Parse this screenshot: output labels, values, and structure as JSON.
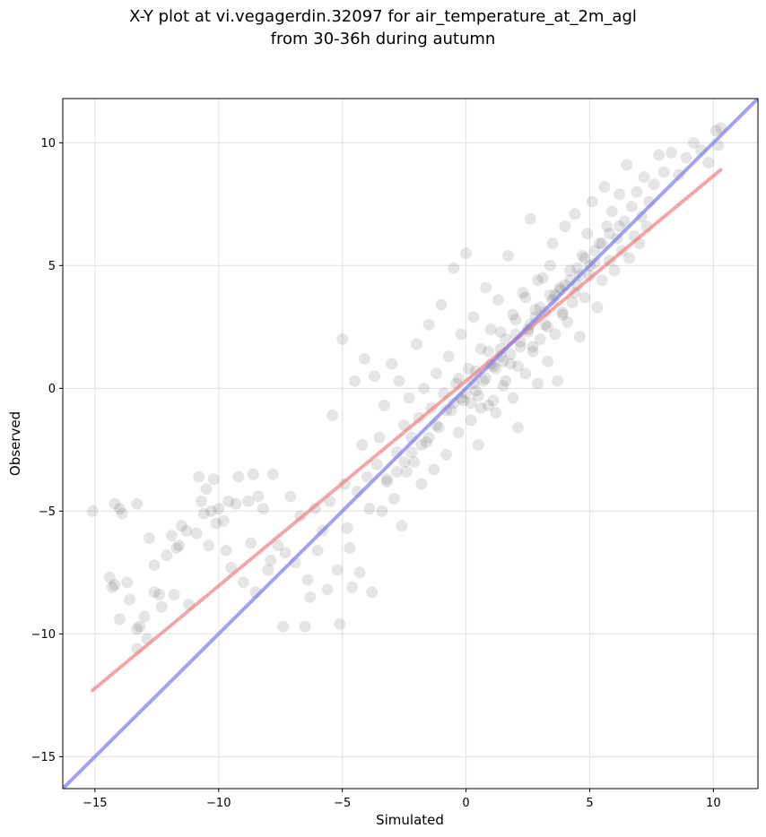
{
  "figure": {
    "title_line1": "X-Y plot at vi.vegagerdin.32097 for air_temperature_at_2m_agl",
    "title_line2": "from 30-36h during autumn"
  },
  "colors": {
    "points": "#000000",
    "regression_line": "#f08080",
    "identity_line": "#7b7bf0",
    "grid": "#e6e6e6"
  },
  "chart_data": {
    "type": "scatter",
    "title": "X-Y plot at vi.vegagerdin.32097 for air_temperature_at_2m_agl from 30-36h during autumn",
    "xlabel": "Simulated",
    "ylabel": "Observed",
    "xlim": [
      -16.3,
      11.8
    ],
    "ylim": [
      -16.3,
      11.8
    ],
    "xticks": [
      -15,
      -10,
      -5,
      0,
      5,
      10
    ],
    "yticks": [
      -15,
      -10,
      -5,
      0,
      5,
      10
    ],
    "xtick_labels": [
      "−15",
      "−10",
      "−5",
      "0",
      "5",
      "10"
    ],
    "ytick_labels": [
      "−15",
      "−10",
      "−5",
      "0",
      "5",
      "10"
    ],
    "grid": true,
    "series": [
      {
        "type": "scatter",
        "points": [
          [
            -15.1,
            -5.0
          ],
          [
            -14.4,
            -7.7
          ],
          [
            -14.3,
            -8.1
          ],
          [
            -14.2,
            -8.0
          ],
          [
            -14.0,
            -9.4
          ],
          [
            -14.2,
            -4.7
          ],
          [
            -13.9,
            -5.1
          ],
          [
            -14.0,
            -4.9
          ],
          [
            -13.7,
            -7.9
          ],
          [
            -13.6,
            -8.6
          ],
          [
            -13.3,
            -9.8
          ],
          [
            -13.2,
            -9.7
          ],
          [
            -13.3,
            -10.6
          ],
          [
            -13.3,
            -4.7
          ],
          [
            -13.0,
            -9.3
          ],
          [
            -12.9,
            -10.2
          ],
          [
            -12.8,
            -6.1
          ],
          [
            -12.6,
            -8.3
          ],
          [
            -12.6,
            -7.2
          ],
          [
            -12.4,
            -8.4
          ],
          [
            -12.3,
            -8.9
          ],
          [
            -12.1,
            -6.8
          ],
          [
            -11.9,
            -6.0
          ],
          [
            -11.8,
            -8.4
          ],
          [
            -11.7,
            -6.5
          ],
          [
            -11.6,
            -6.4
          ],
          [
            -11.5,
            -5.6
          ],
          [
            -11.3,
            -5.8
          ],
          [
            -11.2,
            -8.8
          ],
          [
            -10.9,
            -5.9
          ],
          [
            -10.8,
            -3.6
          ],
          [
            -10.7,
            -4.6
          ],
          [
            -10.6,
            -5.1
          ],
          [
            -10.5,
            -4.1
          ],
          [
            -10.4,
            -6.4
          ],
          [
            -10.3,
            -5.0
          ],
          [
            -10.2,
            -3.7
          ],
          [
            -10.1,
            -5.5
          ],
          [
            -10.0,
            -4.9
          ],
          [
            -9.8,
            -5.4
          ],
          [
            -9.7,
            -6.6
          ],
          [
            -9.6,
            -4.6
          ],
          [
            -9.5,
            -7.3
          ],
          [
            -9.3,
            -4.7
          ],
          [
            -9.2,
            -3.6
          ],
          [
            -9.0,
            -7.9
          ],
          [
            -8.8,
            -4.6
          ],
          [
            -8.7,
            -6.3
          ],
          [
            -8.6,
            -3.5
          ],
          [
            -8.5,
            -8.3
          ],
          [
            -8.4,
            -4.4
          ],
          [
            -8.2,
            -4.9
          ],
          [
            -8.0,
            -7.4
          ],
          [
            -7.9,
            -7.0
          ],
          [
            -7.8,
            -3.5
          ],
          [
            -7.6,
            -6.4
          ],
          [
            -7.4,
            -9.7
          ],
          [
            -7.3,
            -6.7
          ],
          [
            -7.1,
            -4.4
          ],
          [
            -6.9,
            -7.1
          ],
          [
            -6.7,
            -5.2
          ],
          [
            -6.5,
            -9.7
          ],
          [
            -6.4,
            -7.8
          ],
          [
            -6.3,
            -8.5
          ],
          [
            -6.1,
            -4.9
          ],
          [
            -6.0,
            -6.6
          ],
          [
            -5.8,
            -5.8
          ],
          [
            -5.6,
            -8.2
          ],
          [
            -5.5,
            -4.6
          ],
          [
            -5.4,
            -1.1
          ],
          [
            -5.2,
            -7.4
          ],
          [
            -5.1,
            -9.6
          ],
          [
            -5.0,
            2.0
          ],
          [
            -4.9,
            -3.9
          ],
          [
            -4.8,
            -5.7
          ],
          [
            -4.7,
            -6.5
          ],
          [
            -4.6,
            -8.1
          ],
          [
            -4.5,
            0.3
          ],
          [
            -4.4,
            -4.2
          ],
          [
            -4.3,
            -7.5
          ],
          [
            -4.2,
            -2.3
          ],
          [
            -4.1,
            1.2
          ],
          [
            -4.0,
            -3.6
          ],
          [
            -3.9,
            -4.9
          ],
          [
            -3.8,
            -8.3
          ],
          [
            -3.7,
            0.5
          ],
          [
            -3.6,
            -3.1
          ],
          [
            -3.5,
            -2.0
          ],
          [
            -3.4,
            -5.0
          ],
          [
            -3.3,
            -0.7
          ],
          [
            -3.2,
            -3.8
          ],
          [
            -3.0,
            1.0
          ],
          [
            -2.9,
            -4.5
          ],
          [
            -2.8,
            -2.6
          ],
          [
            -2.7,
            0.3
          ],
          [
            -2.6,
            -5.6
          ],
          [
            -2.5,
            -1.5
          ],
          [
            -2.4,
            -3.4
          ],
          [
            -2.3,
            -0.4
          ],
          [
            -2.2,
            -2.0
          ],
          [
            -2.1,
            -3.0
          ],
          [
            -2.0,
            1.8
          ],
          [
            -1.9,
            -1.2
          ],
          [
            -1.8,
            -3.9
          ],
          [
            -1.7,
            0.0
          ],
          [
            -1.6,
            -2.2
          ],
          [
            -1.5,
            2.6
          ],
          [
            -1.4,
            -0.8
          ],
          [
            -1.3,
            -3.3
          ],
          [
            -1.2,
            0.6
          ],
          [
            -1.1,
            -1.6
          ],
          [
            -1.0,
            3.4
          ],
          [
            -0.9,
            -0.2
          ],
          [
            -0.8,
            -2.7
          ],
          [
            -0.7,
            1.3
          ],
          [
            -0.6,
            -0.9
          ],
          [
            -0.5,
            4.9
          ],
          [
            -0.4,
            0.2
          ],
          [
            -0.3,
            -1.8
          ],
          [
            -0.2,
            2.2
          ],
          [
            -0.1,
            -0.5
          ],
          [
            0.0,
            5.5
          ],
          [
            0.1,
            0.8
          ],
          [
            0.2,
            -1.3
          ],
          [
            0.3,
            2.9
          ],
          [
            0.4,
            -0.1
          ],
          [
            0.5,
            -2.3
          ],
          [
            0.6,
            1.6
          ],
          [
            0.7,
            0.3
          ],
          [
            0.8,
            4.1
          ],
          [
            0.9,
            -0.7
          ],
          [
            1.0,
            2.4
          ],
          [
            1.1,
            0.9
          ],
          [
            1.2,
            -1.0
          ],
          [
            1.3,
            3.6
          ],
          [
            1.4,
            1.3
          ],
          [
            1.5,
            0.1
          ],
          [
            1.6,
            2.0
          ],
          [
            1.7,
            5.4
          ],
          [
            1.8,
            1.0
          ],
          [
            1.9,
            -0.4
          ],
          [
            2.0,
            2.8
          ],
          [
            2.1,
            -1.6
          ],
          [
            2.2,
            1.7
          ],
          [
            2.3,
            3.9
          ],
          [
            2.4,
            0.6
          ],
          [
            2.5,
            2.3
          ],
          [
            2.6,
            6.9
          ],
          [
            2.7,
            1.5
          ],
          [
            2.8,
            3.2
          ],
          [
            2.9,
            0.2
          ],
          [
            3.0,
            2.0
          ],
          [
            3.1,
            4.5
          ],
          [
            3.2,
            2.6
          ],
          [
            3.3,
            1.1
          ],
          [
            3.4,
            3.8
          ],
          [
            3.5,
            5.9
          ],
          [
            3.6,
            2.2
          ],
          [
            3.7,
            0.3
          ],
          [
            3.8,
            4.1
          ],
          [
            3.9,
            3.0
          ],
          [
            4.0,
            6.6
          ],
          [
            4.1,
            2.7
          ],
          [
            4.2,
            4.8
          ],
          [
            4.3,
            3.5
          ],
          [
            4.4,
            7.1
          ],
          [
            4.5,
            4.2
          ],
          [
            4.6,
            2.1
          ],
          [
            4.7,
            5.4
          ],
          [
            4.8,
            3.7
          ],
          [
            4.9,
            6.3
          ],
          [
            5.0,
            4.6
          ],
          [
            5.1,
            7.6
          ],
          [
            5.2,
            5.1
          ],
          [
            5.3,
            3.3
          ],
          [
            5.4,
            5.9
          ],
          [
            5.5,
            4.4
          ],
          [
            5.6,
            8.2
          ],
          [
            5.7,
            6.6
          ],
          [
            5.8,
            5.2
          ],
          [
            5.9,
            7.2
          ],
          [
            6.0,
            4.8
          ],
          [
            6.1,
            6.1
          ],
          [
            6.2,
            7.9
          ],
          [
            6.3,
            5.6
          ],
          [
            6.4,
            6.8
          ],
          [
            6.5,
            9.1
          ],
          [
            6.6,
            5.3
          ],
          [
            6.7,
            7.4
          ],
          [
            6.8,
            6.2
          ],
          [
            6.9,
            8.0
          ],
          [
            7.0,
            5.9
          ],
          [
            7.1,
            7.0
          ],
          [
            7.2,
            8.6
          ],
          [
            7.3,
            6.6
          ],
          [
            7.4,
            7.6
          ],
          [
            7.6,
            8.3
          ],
          [
            7.8,
            9.5
          ],
          [
            8.0,
            8.8
          ],
          [
            8.3,
            9.6
          ],
          [
            8.6,
            8.7
          ],
          [
            8.9,
            9.4
          ],
          [
            9.2,
            10.0
          ],
          [
            9.5,
            9.7
          ],
          [
            9.8,
            9.2
          ],
          [
            10.1,
            10.5
          ],
          [
            10.3,
            10.6
          ],
          [
            10.2,
            9.9
          ],
          [
            -0.2,
            -0.4
          ],
          [
            0.2,
            -0.6
          ],
          [
            0.5,
            -0.3
          ],
          [
            0.8,
            0.4
          ],
          [
            1.2,
            0.8
          ],
          [
            1.5,
            1.1
          ],
          [
            1.8,
            1.4
          ],
          [
            2.2,
            1.9
          ],
          [
            2.5,
            2.4
          ],
          [
            2.8,
            2.9
          ],
          [
            3.2,
            3.1
          ],
          [
            3.5,
            3.6
          ],
          [
            3.8,
            4.0
          ],
          [
            4.2,
            4.4
          ],
          [
            4.5,
            4.9
          ],
          [
            4.8,
            5.3
          ],
          [
            5.2,
            5.6
          ],
          [
            5.5,
            5.9
          ],
          [
            5.8,
            6.3
          ],
          [
            6.2,
            6.6
          ],
          [
            -1.2,
            -1.5
          ],
          [
            -1.5,
            -2.0
          ],
          [
            -1.8,
            -2.3
          ],
          [
            -2.2,
            -2.6
          ],
          [
            -2.5,
            -3.0
          ],
          [
            -2.8,
            -3.4
          ],
          [
            -3.2,
            -3.7
          ],
          [
            -0.8,
            -0.9
          ],
          [
            -0.5,
            -0.6
          ],
          [
            0.0,
            -0.2
          ],
          [
            0.3,
            0.2
          ],
          [
            1.0,
            1.0
          ],
          [
            1.4,
            1.6
          ],
          [
            2.0,
            2.2
          ],
          [
            2.6,
            2.6
          ],
          [
            3.0,
            3.3
          ],
          [
            3.6,
            3.8
          ],
          [
            4.0,
            4.2
          ],
          [
            4.6,
            4.6
          ],
          [
            5.0,
            5.0
          ],
          [
            0.6,
            -0.8
          ],
          [
            1.1,
            -0.5
          ],
          [
            1.6,
            0.3
          ],
          [
            2.1,
            0.9
          ],
          [
            2.7,
            1.7
          ],
          [
            3.3,
            2.5
          ],
          [
            3.9,
            3.1
          ],
          [
            4.4,
            3.9
          ],
          [
            0.4,
            0.7
          ],
          [
            0.9,
            1.5
          ],
          [
            1.4,
            2.3
          ],
          [
            1.9,
            3.0
          ],
          [
            2.4,
            3.7
          ],
          [
            2.9,
            4.4
          ],
          [
            3.4,
            5.0
          ],
          [
            -0.3,
            0.4
          ]
        ]
      }
    ],
    "lines": [
      {
        "role": "regression",
        "points": [
          [
            -15.1,
            -12.3
          ],
          [
            10.3,
            8.9
          ]
        ]
      },
      {
        "role": "identity",
        "points": [
          [
            -16.3,
            -16.3
          ],
          [
            11.8,
            11.8
          ]
        ]
      }
    ]
  }
}
